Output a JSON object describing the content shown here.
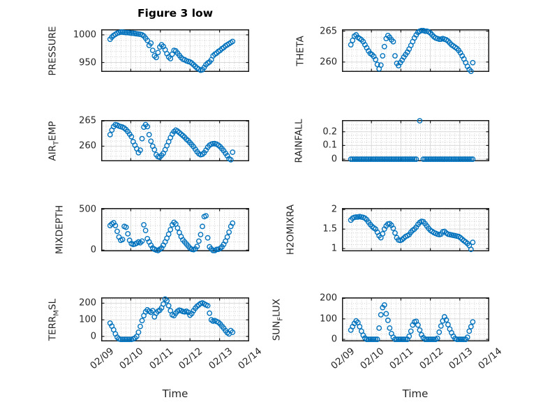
{
  "figure": {
    "title": "Figure 3 low",
    "xlabel": "Time"
  },
  "colors": {
    "marker": "#0072BD",
    "axis": "#1a1a1a",
    "grid": "#d9d9d9",
    "minor_grid": "#c8c8c8",
    "text": "#262626",
    "background": "#ffffff"
  },
  "xticks": [
    "02/09",
    "02/10",
    "02/11",
    "02/12",
    "02/13",
    "02/14"
  ],
  "time_days": [
    0.3,
    0.36,
    0.42,
    0.48,
    0.54,
    0.6,
    0.66,
    0.72,
    0.78,
    0.84,
    0.9,
    0.96,
    1.02,
    1.08,
    1.14,
    1.2,
    1.26,
    1.32,
    1.38,
    1.44,
    1.5,
    1.56,
    1.62,
    1.68,
    1.74,
    1.8,
    1.86,
    1.92,
    1.98,
    2.04,
    2.1,
    2.16,
    2.22,
    2.28,
    2.34,
    2.4,
    2.46,
    2.52,
    2.58,
    2.64,
    2.7,
    2.76,
    2.82,
    2.88,
    2.94,
    3.0,
    3.06,
    3.12,
    3.18,
    3.24,
    3.3,
    3.36,
    3.42,
    3.48,
    3.54,
    3.6,
    3.66,
    3.72,
    3.78,
    3.84,
    3.9,
    3.96,
    4.02,
    4.08,
    4.14,
    4.2,
    4.26,
    4.32,
    4.38,
    4.44
  ],
  "chart_data": [
    {
      "type": "scatter",
      "name": "PRESSURE",
      "x": "time_days",
      "ylabel": {
        "pre": "PRESSURE",
        "sub": "",
        "post": ""
      },
      "ylim": [
        933,
        1010
      ],
      "y_minor_step": 10,
      "show_xticks": false,
      "yticks": [
        {
          "v": 950,
          "label": "950"
        },
        {
          "v": 1000,
          "label": "1000"
        }
      ],
      "values": [
        992,
        996,
        999,
        1001,
        1003,
        1004,
        1005,
        1005,
        1004.5,
        1004,
        1004,
        1003.5,
        1003,
        1003,
        1002.5,
        1002,
        1001.5,
        1001,
        1000,
        998,
        994,
        990,
        981,
        985,
        972,
        962,
        959,
        968,
        978,
        982,
        979,
        973,
        966,
        960,
        957,
        965,
        972,
        971,
        967,
        963,
        959,
        956,
        955,
        953,
        952,
        951,
        949,
        946,
        943,
        940,
        938,
        936,
        937,
        941,
        946,
        949,
        951,
        955,
        962,
        965,
        967,
        970,
        972,
        975,
        977,
        980,
        982,
        984,
        986,
        988
      ]
    },
    {
      "type": "scatter",
      "name": "THETA",
      "x": "time_days",
      "ylabel": {
        "pre": "THETA",
        "sub": "",
        "post": ""
      },
      "ylim": [
        258.4,
        265.3
      ],
      "y_minor_step": 1,
      "show_xticks": false,
      "yticks": [
        {
          "v": 260,
          "label": "260"
        },
        {
          "v": 265,
          "label": "265"
        }
      ],
      "values": [
        262.8,
        263.5,
        264.2,
        264.4,
        264.0,
        263.8,
        263.6,
        263.3,
        262.8,
        262.3,
        261.8,
        261.4,
        261.2,
        260.9,
        260.4,
        259.6,
        258.9,
        259.5,
        261.0,
        262.5,
        263.8,
        264.3,
        264.0,
        263.6,
        263.3,
        261.0,
        259.8,
        259.4,
        259.9,
        260.3,
        260.8,
        261.2,
        261.6,
        262.1,
        262.7,
        263.3,
        263.9,
        264.4,
        264.8,
        265.0,
        265.1,
        265.1,
        265.0,
        265.0,
        264.9,
        264.7,
        264.4,
        264.1,
        263.9,
        263.8,
        263.7,
        263.7,
        263.8,
        263.7,
        263.6,
        263.4,
        263.1,
        262.8,
        262.6,
        262.4,
        262.2,
        261.9,
        261.5,
        261.0,
        260.5,
        259.9,
        259.3,
        258.8,
        258.5,
        259.9
      ]
    },
    {
      "type": "scatter",
      "name": "AIR_TEMP",
      "x": "time_days",
      "ylabel": {
        "pre": "AIR",
        "sub": "T",
        "post": "EMP"
      },
      "ylim": [
        257.0,
        265.2
      ],
      "y_minor_step": 1,
      "show_xticks": false,
      "yticks": [
        {
          "v": 260,
          "label": "260"
        },
        {
          "v": 265,
          "label": "265"
        }
      ],
      "values": [
        262.3,
        263.2,
        263.9,
        264.3,
        264.2,
        264.0,
        263.9,
        263.8,
        263.6,
        263.3,
        262.9,
        262.4,
        261.9,
        260.9,
        260.2,
        259.5,
        258.7,
        259.2,
        261.5,
        263.8,
        264.3,
        263.9,
        262.3,
        261.0,
        260.0,
        259.3,
        258.3,
        257.9,
        257.8,
        258.2,
        258.6,
        259.3,
        260.1,
        260.9,
        261.7,
        262.4,
        262.9,
        263.2,
        263.0,
        262.7,
        262.4,
        262.1,
        261.8,
        261.4,
        261.1,
        260.7,
        260.3,
        259.9,
        259.4,
        258.9,
        258.5,
        258.3,
        258.4,
        258.7,
        259.2,
        259.8,
        260.2,
        260.4,
        260.5,
        260.5,
        260.4,
        260.2,
        259.9,
        259.5,
        259.1,
        258.6,
        258.1,
        257.5,
        257.3,
        258.8
      ]
    },
    {
      "type": "scatter",
      "name": "RAINFALL",
      "x": "time_days",
      "ylabel": {
        "pre": "RAINFALL",
        "sub": "",
        "post": ""
      },
      "ylim": [
        -0.015,
        0.285
      ],
      "y_minor_step": 0.025,
      "show_xticks": false,
      "yticks": [
        {
          "v": 0,
          "label": "0"
        },
        {
          "v": 0.1,
          "label": "0.1"
        },
        {
          "v": 0.2,
          "label": "0.2"
        }
      ],
      "values": [
        0,
        0,
        0,
        0,
        0,
        0,
        0,
        0,
        0,
        0,
        0,
        0,
        0,
        0,
        0,
        0,
        0,
        0,
        0,
        0,
        0,
        0,
        0,
        0,
        0,
        0,
        0,
        0,
        0,
        0,
        0,
        0,
        0,
        0,
        0,
        0,
        0,
        0,
        null,
        0.28,
        null,
        0,
        0,
        0,
        0,
        0,
        0,
        0,
        0,
        0,
        0,
        0,
        0,
        0,
        0,
        0,
        0,
        0,
        0,
        0,
        0,
        0,
        0,
        0,
        0,
        0,
        0,
        0,
        0,
        0
      ]
    },
    {
      "type": "scatter",
      "name": "MIXDEPTH",
      "x": "time_days",
      "ylabel": {
        "pre": "MIXDEPTH",
        "sub": "",
        "post": ""
      },
      "ylim": [
        -15,
        515
      ],
      "y_minor_step": 100,
      "show_xticks": false,
      "yticks": [
        {
          "v": 0,
          "label": "0"
        },
        {
          "v": 500,
          "label": "500"
        }
      ],
      "values": [
        300,
        320,
        335,
        300,
        230,
        160,
        120,
        130,
        290,
        280,
        200,
        120,
        80,
        70,
        75,
        85,
        100,
        90,
        110,
        310,
        240,
        140,
        100,
        60,
        25,
        10,
        0,
        -5,
        10,
        25,
        60,
        100,
        145,
        195,
        250,
        310,
        340,
        320,
        270,
        215,
        165,
        125,
        100,
        75,
        50,
        25,
        10,
        5,
        15,
        45,
        110,
        190,
        290,
        410,
        420,
        150,
        40,
        15,
        -5,
        -5,
        8,
        10,
        20,
        40,
        70,
        110,
        160,
        220,
        290,
        330
      ]
    },
    {
      "type": "scatter",
      "name": "H2OMIXRA",
      "x": "time_days",
      "ylabel": {
        "pre": "H2OMIXRA",
        "sub": "",
        "post": ""
      },
      "ylim": [
        0.93,
        2.04
      ],
      "y_minor_step": 0.1,
      "show_xticks": false,
      "yticks": [
        {
          "v": 1,
          "label": "1"
        },
        {
          "v": 1.5,
          "label": "1.5"
        },
        {
          "v": 2,
          "label": "2"
        }
      ],
      "values": [
        1.73,
        1.78,
        1.8,
        1.81,
        1.81,
        1.82,
        1.81,
        1.8,
        1.78,
        1.74,
        1.68,
        1.62,
        1.57,
        1.53,
        1.5,
        1.42,
        1.33,
        1.28,
        1.38,
        1.5,
        1.58,
        1.63,
        1.64,
        1.6,
        1.52,
        1.4,
        1.28,
        1.22,
        1.21,
        1.23,
        1.27,
        1.31,
        1.33,
        1.36,
        1.42,
        1.47,
        1.5,
        1.55,
        1.62,
        1.67,
        1.7,
        1.69,
        1.64,
        1.58,
        1.52,
        1.47,
        1.44,
        1.41,
        1.39,
        1.37,
        1.36,
        1.37,
        1.43,
        1.44,
        1.4,
        1.37,
        1.36,
        1.35,
        1.34,
        1.33,
        1.32,
        1.31,
        1.28,
        1.24,
        1.2,
        1.17,
        1.13,
        1.08,
        0.98,
        1.16
      ]
    },
    {
      "type": "scatter",
      "name": "TERR_MSL",
      "x": "time_days",
      "ylabel": {
        "pre": "TERR",
        "sub": "M",
        "post": "SL"
      },
      "ylim": [
        -30,
        235
      ],
      "y_minor_step": 25,
      "show_xticks": true,
      "yticks": [
        {
          "v": 0,
          "label": "0"
        },
        {
          "v": 100,
          "label": "100"
        },
        {
          "v": 200,
          "label": "200"
        }
      ],
      "values": [
        80,
        62,
        40,
        15,
        -5,
        -15,
        -18,
        -18,
        -18,
        -18,
        -18,
        -18,
        -18,
        -15,
        -10,
        0,
        25,
        60,
        95,
        125,
        148,
        160,
        152,
        145,
        155,
        118,
        140,
        152,
        158,
        172,
        195,
        225,
        215,
        185,
        155,
        130,
        125,
        140,
        152,
        158,
        155,
        150,
        148,
        152,
        145,
        128,
        138,
        155,
        170,
        182,
        190,
        198,
        202,
        196,
        190,
        185,
        140,
        100,
        92,
        95,
        90,
        85,
        75,
        62,
        50,
        35,
        22,
        15,
        35,
        25
      ]
    },
    {
      "type": "scatter",
      "name": "SUN_FLUX",
      "x": "time_days",
      "ylabel": {
        "pre": "SUN",
        "sub": "F",
        "post": "LUX"
      },
      "ylim": [
        -10,
        205
      ],
      "y_minor_step": 25,
      "show_xticks": true,
      "yticks": [
        {
          "v": 0,
          "label": "0"
        },
        {
          "v": 100,
          "label": "100"
        },
        {
          "v": 200,
          "label": "200"
        }
      ],
      "values": [
        45,
        62,
        78,
        90,
        82,
        62,
        40,
        20,
        6,
        0,
        0,
        0,
        0,
        0,
        0,
        0,
        55,
        120,
        155,
        168,
        125,
        93,
        55,
        28,
        10,
        0,
        0,
        0,
        0,
        0,
        0,
        0,
        0,
        15,
        40,
        70,
        85,
        88,
        70,
        45,
        22,
        8,
        0,
        0,
        0,
        0,
        0,
        0,
        0,
        5,
        35,
        65,
        90,
        110,
        95,
        72,
        50,
        32,
        15,
        4,
        0,
        0,
        0,
        0,
        0,
        0,
        10,
        40,
        62,
        85
      ]
    }
  ]
}
